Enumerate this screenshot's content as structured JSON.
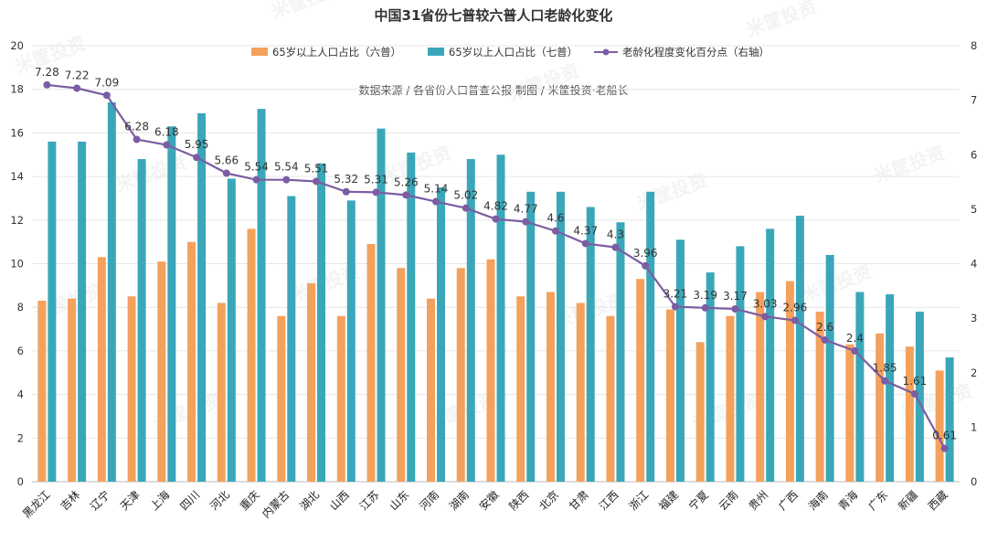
{
  "chart_data": {
    "type": "bar",
    "title": "中国31省份七普较六普人口老龄化变化",
    "subtitle": "数据来源 / 各省份人口普查公报 制图 / 米筐投资·老船长",
    "categories": [
      "黑龙江",
      "吉林",
      "辽宁",
      "天津",
      "上海",
      "四川",
      "河北",
      "重庆",
      "内蒙古",
      "湖北",
      "山西",
      "江苏",
      "山东",
      "河南",
      "湖南",
      "安徽",
      "陕西",
      "北京",
      "甘肃",
      "江西",
      "浙江",
      "福建",
      "宁夏",
      "云南",
      "贵州",
      "广西",
      "海南",
      "青海",
      "广东",
      "新疆",
      "西藏"
    ],
    "series": [
      {
        "name": "65岁以上人口占比（六普）",
        "type": "bar",
        "axis": "left",
        "color": "#F4A15D",
        "values": [
          8.3,
          8.4,
          10.3,
          8.5,
          10.1,
          11.0,
          8.2,
          11.6,
          7.6,
          9.1,
          7.6,
          10.9,
          9.8,
          8.4,
          9.8,
          10.2,
          8.5,
          8.7,
          8.2,
          7.6,
          9.3,
          7.9,
          6.4,
          7.6,
          8.7,
          9.2,
          7.8,
          6.3,
          6.8,
          6.2,
          5.1
        ]
      },
      {
        "name": "65岁以上人口占比（七普）",
        "type": "bar",
        "axis": "left",
        "color": "#3AA7B9",
        "values": [
          15.6,
          15.6,
          17.4,
          14.8,
          16.3,
          16.9,
          13.9,
          17.1,
          13.1,
          14.6,
          12.9,
          16.2,
          15.1,
          13.5,
          14.8,
          15.0,
          13.3,
          13.3,
          12.6,
          11.9,
          13.3,
          11.1,
          9.6,
          10.8,
          11.6,
          12.2,
          10.4,
          8.7,
          8.6,
          7.8,
          5.7
        ]
      },
      {
        "name": "老龄化程度变化百分点（右轴）",
        "type": "line",
        "axis": "right",
        "color": "#7B5DA3",
        "values": [
          7.28,
          7.22,
          7.09,
          6.28,
          6.18,
          5.95,
          5.66,
          5.54,
          5.54,
          5.51,
          5.32,
          5.31,
          5.26,
          5.14,
          5.02,
          4.82,
          4.77,
          4.6,
          4.37,
          4.3,
          3.96,
          3.21,
          3.19,
          3.17,
          3.03,
          2.96,
          2.6,
          2.4,
          1.85,
          1.61,
          0.61
        ],
        "labels": [
          "7.28",
          "7.22",
          "7.09",
          "6.28",
          "6.18",
          "5.95",
          "5.66",
          "5.54",
          "5.54",
          "5.51",
          "5.32",
          "5.31",
          "5.26",
          "5.14",
          "5.02",
          "4.82",
          "4.77",
          "4.6",
          "4.37",
          "4.3",
          "3.96",
          "3.21",
          "3.19",
          "3.17",
          "3.03",
          "2.96",
          "2.6",
          "2.4",
          "1.85",
          "1.61",
          "0.61"
        ]
      }
    ],
    "ylim": [
      0,
      20
    ],
    "yticks": [
      0,
      2,
      4,
      6,
      8,
      10,
      12,
      14,
      16,
      18,
      20
    ],
    "y2lim": [
      0,
      8
    ],
    "y2ticks": [
      0,
      1,
      2,
      3,
      4,
      5,
      6,
      7,
      8
    ],
    "grid": true,
    "legend_position": "top-center"
  },
  "watermark": "米筐投资"
}
